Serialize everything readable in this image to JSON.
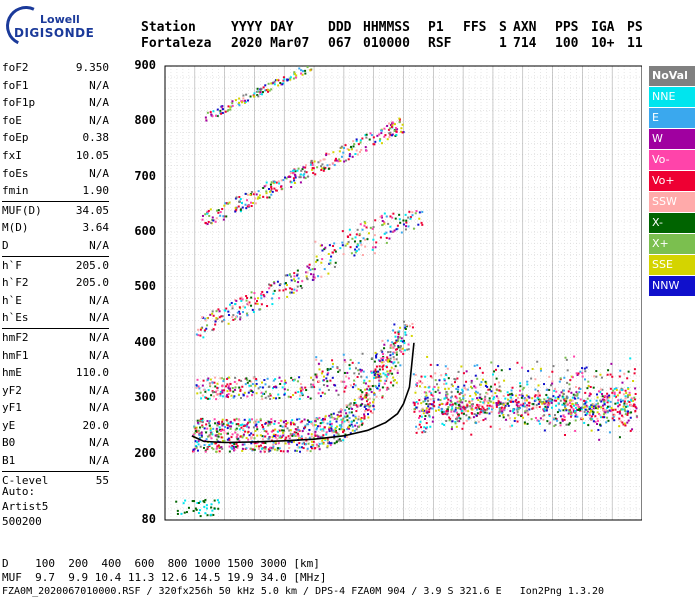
{
  "logo": {
    "line1": "Lowell",
    "line2": "DIGISONDE"
  },
  "header": {
    "labels": [
      "Station",
      "YYYY DAY",
      "DDD",
      "HHMMSS",
      "P1",
      "FFS",
      "S",
      "AXN",
      "PPS",
      "IGA",
      "PS"
    ],
    "values": [
      "Fortaleza",
      "2020 Mar07",
      "067",
      "010000",
      "RSF",
      "1",
      "714",
      "100",
      "10+",
      "11"
    ]
  },
  "params": {
    "group1": [
      [
        "foF2",
        "9.350"
      ],
      [
        "foF1",
        "N/A"
      ],
      [
        "foF1p",
        "N/A"
      ],
      [
        "foE",
        "N/A"
      ],
      [
        "foEp",
        "0.38"
      ],
      [
        "fxI",
        "10.05"
      ],
      [
        "foEs",
        "N/A"
      ],
      [
        "fmin",
        "1.90"
      ]
    ],
    "group2": [
      [
        "MUF(D)",
        "34.05"
      ],
      [
        "M(D)",
        "3.64"
      ],
      [
        "D",
        "N/A"
      ]
    ],
    "group3": [
      [
        "h`F",
        "205.0"
      ],
      [
        "h`F2",
        "205.0"
      ],
      [
        "h`E",
        "N/A"
      ],
      [
        "h`Es",
        "N/A"
      ]
    ],
    "group4": [
      [
        "hmF2",
        "N/A"
      ],
      [
        "hmF1",
        "N/A"
      ],
      [
        "hmE",
        "110.0"
      ],
      [
        "yF2",
        "N/A"
      ],
      [
        "yF1",
        "N/A"
      ],
      [
        "yE",
        "20.0"
      ],
      [
        "B0",
        "N/A"
      ],
      [
        "B1",
        "N/A"
      ]
    ],
    "group5": [
      [
        "C-level",
        "55"
      ]
    ]
  },
  "auto_block": [
    "Auto:",
    "Artist5",
    "500200"
  ],
  "legend": [
    {
      "label": "NoVal",
      "color": "#808080"
    },
    {
      "label": "NNE",
      "color": "#00e5ee"
    },
    {
      "label": "E",
      "color": "#3aa8ee"
    },
    {
      "label": "W",
      "color": "#a000a0"
    },
    {
      "label": "Vo-",
      "color": "#ff44aa"
    },
    {
      "label": "Vo+",
      "color": "#ee0033"
    },
    {
      "label": "SSW",
      "color": "#ffaaaa"
    },
    {
      "label": "X-",
      "color": "#006400"
    },
    {
      "label": "X+",
      "color": "#7bbf4f"
    },
    {
      "label": "SSE",
      "color": "#d4d400"
    },
    {
      "label": "NNW",
      "color": "#1010cc"
    }
  ],
  "muf_table": {
    "d_label": "D",
    "d_values": "100  200  400  600  800 1000 1500 3000 [km]",
    "muf_label": "MUF",
    "muf_values": "9.7  9.9 10.4 11.3 12.6 14.5 19.9 34.0 [MHz]"
  },
  "footer": "FZA0M_2020067010000.RSF / 320fx256h 50 kHz 5.0 km / DPS-4 FZA0M 904 / 3.9 S 321.6 E   Ion2Png 1.3.20",
  "chart_data": {
    "type": "scatter",
    "xlim": [
      1,
      17
    ],
    "ylim": [
      80,
      900
    ],
    "x_ticks": [
      1,
      2,
      3,
      4,
      5,
      6,
      7,
      8,
      9,
      10,
      11,
      12,
      13,
      14,
      15,
      16,
      17
    ],
    "y_ticks": [
      80,
      200,
      300,
      400,
      500,
      600,
      700,
      800,
      900
    ],
    "grid": true,
    "trace": {
      "x": [
        1.9,
        2.3,
        3.0,
        4.0,
        5.0,
        6.0,
        7.0,
        7.8,
        8.4,
        8.8,
        9.0,
        9.2,
        9.35
      ],
      "y": [
        232,
        222,
        220,
        221,
        223,
        226,
        232,
        242,
        256,
        272,
        290,
        320,
        400
      ]
    },
    "echo_clusters": [
      {
        "name": "F-layer 1st hop",
        "x": [
          1.8,
          9.3
        ],
        "y": [
          205,
          420
        ]
      },
      {
        "name": "F-layer 2nd hop",
        "x": [
          2.0,
          8.8
        ],
        "y": [
          300,
          440
        ]
      },
      {
        "name": "F-layer 3rd hop",
        "x": [
          2.0,
          9.8
        ],
        "y": [
          400,
          630
        ]
      },
      {
        "name": "F-layer 4th hop",
        "x": [
          2.2,
          9.0
        ],
        "y": [
          600,
          800
        ]
      },
      {
        "name": "F-layer 5th hop",
        "x": [
          2.3,
          6.0
        ],
        "y": [
          800,
          900
        ]
      },
      {
        "name": "F spread",
        "x": [
          9.3,
          16.8
        ],
        "y": [
          250,
          380
        ]
      },
      {
        "name": "E/Es low",
        "x": [
          1.3,
          2.8
        ],
        "y": [
          85,
          125
        ]
      }
    ]
  }
}
